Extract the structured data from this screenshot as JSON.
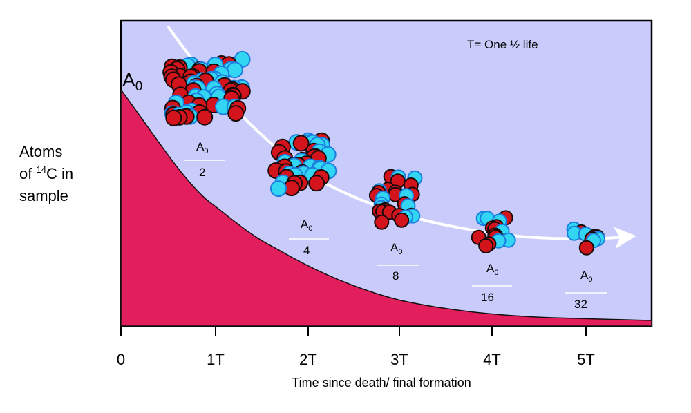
{
  "colors": {
    "background": "#c9cbfb",
    "curve_fill": "#e31e5c",
    "proton": "#d4141c",
    "neutron": "#33d6f2",
    "neutron_edge": "#1b7de0",
    "arrow": "#ffffff"
  },
  "y_axis_label": {
    "line1": "Atoms",
    "line2_prefix": "of ",
    "line2_sup": "14",
    "line2_suffix": "C in",
    "line3": "sample"
  },
  "start_label": {
    "letter": "A",
    "sub": "0"
  },
  "half_life_note": "T= One ½ life",
  "x_axis_title": "Time since death/ final formation",
  "x_ticks": [
    "0",
    "1T",
    "2T",
    "3T",
    "4T",
    "5T"
  ],
  "fractions": [
    {
      "numerator": "A",
      "numerator_sub": "0",
      "denominator": "2"
    },
    {
      "numerator": "A",
      "numerator_sub": "0",
      "denominator": "4"
    },
    {
      "numerator": "A",
      "numerator_sub": "0",
      "denominator": "8"
    },
    {
      "numerator": "A",
      "numerator_sub": "0",
      "denominator": "16"
    },
    {
      "numerator": "A",
      "numerator_sub": "0",
      "denominator": "32"
    }
  ]
}
